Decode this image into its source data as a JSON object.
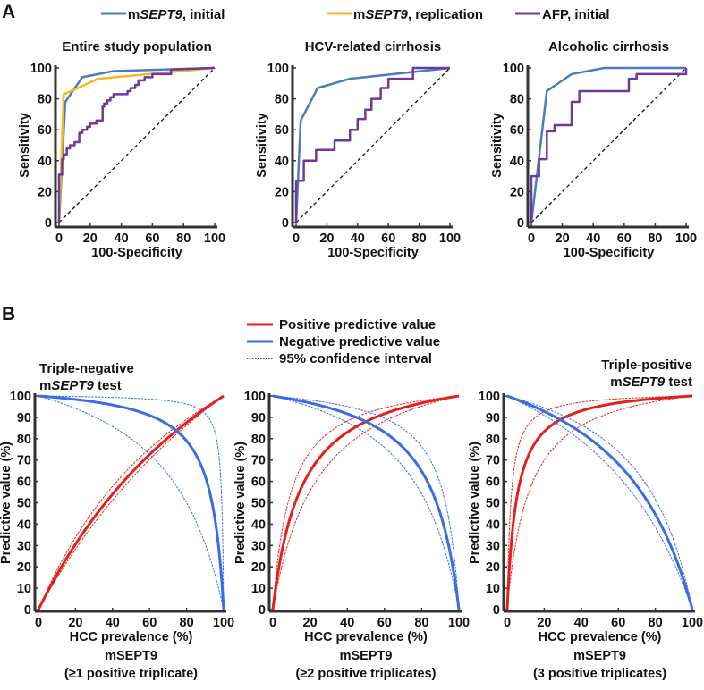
{
  "panels": {
    "a_label": "A",
    "b_label": "B"
  },
  "legend_a": [
    {
      "label": "mSEPT9, initial",
      "color": "#4a7cc4"
    },
    {
      "label": "mSEPT9, replication",
      "color": "#f2b922"
    },
    {
      "label": "AFP, initial",
      "color": "#6b3a9c"
    }
  ],
  "legend_b": [
    {
      "label": "Positive predictive value",
      "color": "#e4201f",
      "style": "solid"
    },
    {
      "label": "Negative predictive value",
      "color": "#3a6de0",
      "style": "solid"
    },
    {
      "label": "95% confidence interval",
      "color": "#111111",
      "style": "dotted"
    }
  ],
  "chart_data": [
    {
      "type": "line",
      "title": "Entire study population",
      "xlabel": "100-Specificity",
      "ylabel": "Sensitivity",
      "xlim": [
        0,
        100
      ],
      "ylim": [
        0,
        100
      ],
      "xticks": [
        "0",
        "20",
        "40",
        "60",
        "80",
        "100"
      ],
      "yticks": [
        "0",
        "20",
        "40",
        "60",
        "80",
        "100"
      ],
      "reference_line": "diagonal",
      "series": [
        {
          "name": "mSEPT9, initial",
          "color": "#4a7cc4",
          "points": [
            [
              0,
              0
            ],
            [
              4,
              78
            ],
            [
              15,
              94
            ],
            [
              35,
              98
            ],
            [
              100,
              100
            ]
          ]
        },
        {
          "name": "mSEPT9, replication",
          "color": "#f2b922",
          "points": [
            [
              0,
              0
            ],
            [
              3,
              83
            ],
            [
              10,
              86
            ],
            [
              25,
              93
            ],
            [
              100,
              100
            ]
          ]
        },
        {
          "name": "AFP, initial",
          "color": "#6b3a9c",
          "points": [
            [
              0,
              0
            ],
            [
              0,
              31
            ],
            [
              2,
              31
            ],
            [
              2,
              41
            ],
            [
              3,
              41
            ],
            [
              3,
              44
            ],
            [
              5,
              44
            ],
            [
              5,
              48
            ],
            [
              7,
              48
            ],
            [
              7,
              50
            ],
            [
              10,
              50
            ],
            [
              10,
              52
            ],
            [
              13,
              52
            ],
            [
              13,
              58
            ],
            [
              15,
              58
            ],
            [
              15,
              60
            ],
            [
              18,
              60
            ],
            [
              18,
              62
            ],
            [
              20,
              62
            ],
            [
              20,
              64
            ],
            [
              24,
              64
            ],
            [
              24,
              66
            ],
            [
              28,
              66
            ],
            [
              28,
              75
            ],
            [
              29,
              75
            ],
            [
              29,
              77
            ],
            [
              31,
              77
            ],
            [
              31,
              79
            ],
            [
              33,
              79
            ],
            [
              33,
              81
            ],
            [
              35,
              81
            ],
            [
              35,
              83
            ],
            [
              44,
              83
            ],
            [
              44,
              85
            ],
            [
              46,
              85
            ],
            [
              46,
              87
            ],
            [
              49,
              87
            ],
            [
              49,
              89
            ],
            [
              51,
              89
            ],
            [
              51,
              92
            ],
            [
              55,
              92
            ],
            [
              55,
              94
            ],
            [
              60,
              94
            ],
            [
              60,
              96
            ],
            [
              72,
              96
            ],
            [
              72,
              99
            ],
            [
              100,
              100
            ]
          ]
        }
      ]
    },
    {
      "type": "line",
      "title": "HCV-related cirrhosis",
      "xlabel": "100-Specificity",
      "ylabel": "Sensitivity",
      "xlim": [
        0,
        100
      ],
      "ylim": [
        0,
        100
      ],
      "xticks": [
        "0",
        "20",
        "40",
        "60",
        "80",
        "100"
      ],
      "yticks": [
        "0",
        "20",
        "40",
        "60",
        "80",
        "100"
      ],
      "reference_line": "diagonal",
      "series": [
        {
          "name": "mSEPT9, initial",
          "color": "#4a7cc4",
          "points": [
            [
              0,
              0
            ],
            [
              3,
              66
            ],
            [
              14,
              87
            ],
            [
              35,
              93
            ],
            [
              100,
              100
            ]
          ]
        },
        {
          "name": "AFP, initial",
          "color": "#6b3a9c",
          "points": [
            [
              0,
              0
            ],
            [
              0,
              27
            ],
            [
              5,
              27
            ],
            [
              5,
              40
            ],
            [
              13,
              40
            ],
            [
              13,
              47
            ],
            [
              25,
              47
            ],
            [
              25,
              53
            ],
            [
              35,
              53
            ],
            [
              35,
              60
            ],
            [
              40,
              60
            ],
            [
              40,
              67
            ],
            [
              45,
              67
            ],
            [
              45,
              73
            ],
            [
              49,
              73
            ],
            [
              49,
              80
            ],
            [
              55,
              80
            ],
            [
              55,
              87
            ],
            [
              60,
              87
            ],
            [
              60,
              93
            ],
            [
              76,
              93
            ],
            [
              76,
              100
            ],
            [
              100,
              100
            ]
          ]
        }
      ]
    },
    {
      "type": "line",
      "title": "Alcoholic cirrhosis",
      "xlabel": "100-Specificity",
      "ylabel": "Sensitivity",
      "xlim": [
        0,
        100
      ],
      "ylim": [
        0,
        100
      ],
      "xticks": [
        "0",
        "20",
        "40",
        "60",
        "80",
        "100"
      ],
      "yticks": [
        "0",
        "20",
        "40",
        "60",
        "80",
        "100"
      ],
      "reference_line": "diagonal",
      "series": [
        {
          "name": "mSEPT9, initial",
          "color": "#4a7cc4",
          "points": [
            [
              0,
              0
            ],
            [
              10,
              85
            ],
            [
              26,
              96
            ],
            [
              47,
              100
            ],
            [
              100,
              100
            ]
          ]
        },
        {
          "name": "AFP, initial",
          "color": "#6b3a9c",
          "points": [
            [
              0,
              0
            ],
            [
              0,
              30
            ],
            [
              5,
              30
            ],
            [
              5,
              41
            ],
            [
              10,
              41
            ],
            [
              10,
              59
            ],
            [
              15,
              59
            ],
            [
              15,
              63
            ],
            [
              26,
              63
            ],
            [
              26,
              78
            ],
            [
              31,
              78
            ],
            [
              31,
              85
            ],
            [
              63,
              85
            ],
            [
              63,
              93
            ],
            [
              68,
              93
            ],
            [
              68,
              96
            ],
            [
              100,
              96
            ],
            [
              100,
              100
            ]
          ]
        }
      ]
    },
    {
      "type": "line",
      "title_lines": [
        "Triple-negative",
        "mSEPT9 test"
      ],
      "xlabel": "HCC prevalence (%)",
      "ylabel": "Predictive value (%)",
      "caption_lines": [
        "mSEPT9",
        "(≥1 positive triplicate)"
      ],
      "xlim": [
        0,
        100
      ],
      "ylim": [
        0,
        100
      ],
      "xticks": [
        "0",
        "20",
        "40",
        "60",
        "80",
        "100"
      ],
      "yticks": [
        "0",
        "10",
        "20",
        "30",
        "40",
        "50",
        "60",
        "70",
        "80",
        "90",
        "100"
      ],
      "series": [
        {
          "name": "Positive predictive value",
          "kind": "ppv",
          "role": "estimate",
          "sensitivity": 0.97,
          "specificity": 0.45,
          "color": "#e4201f"
        },
        {
          "name": "PPV 95% CI upper",
          "kind": "ppv",
          "role": "ci",
          "sensitivity": 0.98,
          "specificity": 0.52,
          "color": "#e4201f"
        },
        {
          "name": "PPV 95% CI lower",
          "kind": "ppv",
          "role": "ci",
          "sensitivity": 0.96,
          "specificity": 0.39,
          "color": "#e4201f"
        },
        {
          "name": "Negative predictive value",
          "kind": "npv",
          "role": "estimate",
          "sensitivity": 0.97,
          "specificity": 0.45,
          "color": "#3a6de0"
        },
        {
          "name": "NPV 95% CI upper",
          "kind": "npv",
          "role": "ci",
          "sensitivity": 0.995,
          "specificity": 0.5,
          "color": "#3a6de0"
        },
        {
          "name": "NPV 95% CI lower",
          "kind": "npv",
          "role": "ci",
          "sensitivity": 0.9,
          "specificity": 0.4,
          "color": "#3a6de0"
        }
      ]
    },
    {
      "type": "line",
      "xlabel": "HCC prevalence (%)",
      "ylabel": "Predictive value (%)",
      "caption_lines": [
        "mSEPT9",
        "(≥2 positive triplicates)"
      ],
      "xlim": [
        0,
        100
      ],
      "ylim": [
        0,
        100
      ],
      "xticks": [
        "0",
        "20",
        "40",
        "60",
        "80",
        "100"
      ],
      "yticks": [
        "0",
        "10",
        "20",
        "30",
        "40",
        "50",
        "60",
        "70",
        "80",
        "90",
        "100"
      ],
      "series": [
        {
          "name": "Positive predictive value",
          "kind": "ppv",
          "role": "estimate",
          "sensitivity": 0.88,
          "specificity": 0.88,
          "color": "#e4201f"
        },
        {
          "name": "PPV 95% CI upper",
          "kind": "ppv",
          "role": "ci",
          "sensitivity": 0.9,
          "specificity": 0.92,
          "color": "#e4201f"
        },
        {
          "name": "PPV 95% CI lower",
          "kind": "ppv",
          "role": "ci",
          "sensitivity": 0.85,
          "specificity": 0.83,
          "color": "#e4201f"
        },
        {
          "name": "Negative predictive value",
          "kind": "npv",
          "role": "estimate",
          "sensitivity": 0.88,
          "specificity": 0.88,
          "color": "#3a6de0"
        },
        {
          "name": "NPV 95% CI upper",
          "kind": "npv",
          "role": "ci",
          "sensitivity": 0.93,
          "specificity": 0.9,
          "color": "#3a6de0"
        },
        {
          "name": "NPV 95% CI lower",
          "kind": "npv",
          "role": "ci",
          "sensitivity": 0.82,
          "specificity": 0.85,
          "color": "#3a6de0"
        }
      ]
    },
    {
      "type": "line",
      "title_lines": [
        "Triple-positive",
        "mSEPT9 test"
      ],
      "xlabel": "HCC prevalence (%)",
      "ylabel": "Predictive value (%)",
      "caption_lines": [
        "mSEPT9",
        "(3 positive triplicates)"
      ],
      "xlim": [
        0,
        100
      ],
      "ylim": [
        0,
        100
      ],
      "xticks": [
        "0",
        "20",
        "40",
        "60",
        "80",
        "100"
      ],
      "yticks": [
        "0",
        "10",
        "20",
        "30",
        "40",
        "50",
        "60",
        "70",
        "80",
        "90",
        "100"
      ],
      "series": [
        {
          "name": "Positive predictive value",
          "kind": "ppv",
          "role": "estimate",
          "sensitivity": 0.7,
          "specificity": 0.965,
          "color": "#e4201f"
        },
        {
          "name": "PPV 95% CI upper",
          "kind": "ppv",
          "role": "ci",
          "sensitivity": 0.75,
          "specificity": 0.985,
          "color": "#e4201f"
        },
        {
          "name": "PPV 95% CI lower",
          "kind": "ppv",
          "role": "ci",
          "sensitivity": 0.65,
          "specificity": 0.93,
          "color": "#e4201f"
        },
        {
          "name": "Negative predictive value",
          "kind": "npv",
          "role": "estimate",
          "sensitivity": 0.7,
          "specificity": 0.965,
          "color": "#3a6de0"
        },
        {
          "name": "NPV 95% CI upper",
          "kind": "npv",
          "role": "ci",
          "sensitivity": 0.77,
          "specificity": 0.98,
          "color": "#3a6de0"
        },
        {
          "name": "NPV 95% CI lower",
          "kind": "npv",
          "role": "ci",
          "sensitivity": 0.62,
          "specificity": 0.95,
          "color": "#3a6de0"
        }
      ]
    }
  ]
}
